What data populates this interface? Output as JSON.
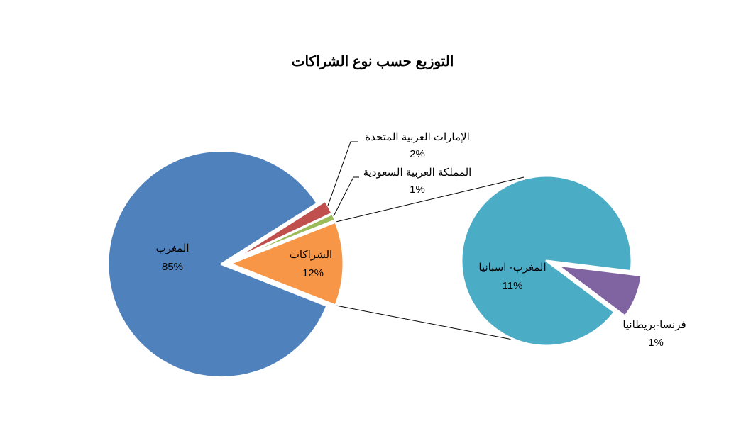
{
  "chart_data": {
    "type": "pie",
    "variant": "pie-of-pie",
    "title": "التوزيع حسب نوع الشراكات",
    "primary": {
      "slices": [
        {
          "label": "المغرب",
          "percent_label": "85%",
          "value": 85,
          "color": "#4F81BD"
        },
        {
          "label": "الإمارات العربية المتحدة",
          "percent_label": "2%",
          "value": 2,
          "color": "#C0504D"
        },
        {
          "label": "المملكة العربية السعودية",
          "percent_label": "1%",
          "value": 1,
          "color": "#9BBB59"
        },
        {
          "label": "الشراكات",
          "percent_label": "12%",
          "value": 12,
          "color": "#F79646"
        }
      ]
    },
    "secondary": {
      "source_slice": "الشراكات",
      "slices": [
        {
          "label": "المغرب- اسبانيا",
          "percent_label": "11%",
          "value": 11,
          "color": "#4BACC6"
        },
        {
          "label": "فرنسا-بريطانيا",
          "percent_label": "1%",
          "value": 1,
          "color": "#8064A2"
        }
      ]
    },
    "legend": "none"
  }
}
